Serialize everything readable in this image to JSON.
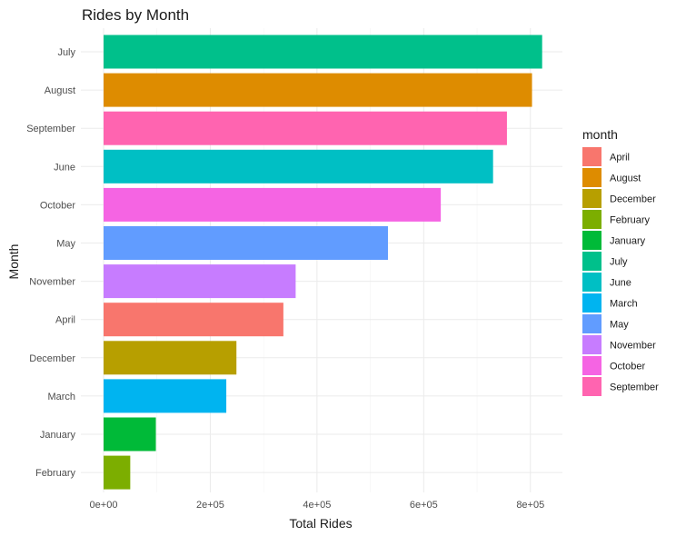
{
  "chart_data": {
    "type": "bar",
    "orientation": "horizontal",
    "title": "Rides by Month",
    "xlabel": "Total Rides",
    "ylabel": "Month",
    "xlim": [
      0,
      860000
    ],
    "x_ticks": [
      0,
      200000,
      400000,
      600000,
      800000
    ],
    "x_tick_labels": [
      "0e+00",
      "2e+05",
      "4e+05",
      "6e+05",
      "8e+05"
    ],
    "grid": true,
    "legend_title": "month",
    "legend_position": "right",
    "categories": [
      "July",
      "August",
      "September",
      "June",
      "October",
      "May",
      "November",
      "April",
      "December",
      "March",
      "January",
      "February"
    ],
    "values": [
      822000,
      803000,
      756000,
      730000,
      632000,
      533000,
      360000,
      337000,
      249000,
      230000,
      98000,
      50000
    ],
    "colors": {
      "April": "#F8766D",
      "August": "#DE8C00",
      "December": "#B79F00",
      "February": "#7CAE00",
      "January": "#00BA38",
      "July": "#00C08B",
      "June": "#00BFC4",
      "March": "#00B4F0",
      "May": "#619CFF",
      "November": "#C77CFF",
      "October": "#F564E3",
      "September": "#FF64B0"
    },
    "legend_entries": [
      "April",
      "August",
      "December",
      "February",
      "January",
      "July",
      "June",
      "March",
      "May",
      "November",
      "October",
      "September"
    ]
  }
}
